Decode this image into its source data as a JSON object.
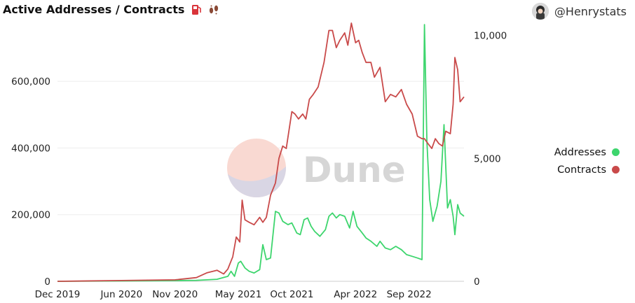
{
  "header": {
    "title": "Active Addresses / Contracts",
    "author": "@Henrystats"
  },
  "watermark": "Dune",
  "colors": {
    "addresses": "#3dd56d",
    "contracts": "#c94a4a",
    "grid": "#eeeeee"
  },
  "chart_data": {
    "type": "line",
    "title": "Active Addresses / Contracts",
    "xlabel": "",
    "ylabel": "",
    "x_ticks": [
      "Dec 2019",
      "Jun 2020",
      "Nov 2020",
      "May 2021",
      "Oct 2021",
      "Apr 2022",
      "Sep 2022"
    ],
    "y_left": {
      "ticks": [
        "0",
        "200,000",
        "400,000",
        "600,000"
      ],
      "ylim": [
        0,
        760000
      ]
    },
    "y_right": {
      "ticks": [
        "0",
        "5,000",
        "10,000"
      ],
      "ylim": [
        0,
        10300
      ]
    },
    "grid": true,
    "legend_position": "right",
    "series": [
      {
        "name": "Addresses",
        "axis": "left",
        "points": [
          [
            "2019-12-01",
            0
          ],
          [
            "2020-06-01",
            1000
          ],
          [
            "2020-11-01",
            2000
          ],
          [
            "2021-01-01",
            3000
          ],
          [
            "2021-03-01",
            6000
          ],
          [
            "2021-04-01",
            15000
          ],
          [
            "2021-04-10",
            30000
          ],
          [
            "2021-04-20",
            15000
          ],
          [
            "2021-05-01",
            55000
          ],
          [
            "2021-05-08",
            60000
          ],
          [
            "2021-05-20",
            40000
          ],
          [
            "2021-06-01",
            30000
          ],
          [
            "2021-06-15",
            25000
          ],
          [
            "2021-07-01",
            35000
          ],
          [
            "2021-07-10",
            110000
          ],
          [
            "2021-07-20",
            65000
          ],
          [
            "2021-08-01",
            70000
          ],
          [
            "2021-08-15",
            210000
          ],
          [
            "2021-08-25",
            205000
          ],
          [
            "2021-09-05",
            180000
          ],
          [
            "2021-09-20",
            170000
          ],
          [
            "2021-10-01",
            175000
          ],
          [
            "2021-10-15",
            145000
          ],
          [
            "2021-10-25",
            140000
          ],
          [
            "2021-11-05",
            185000
          ],
          [
            "2021-11-15",
            190000
          ],
          [
            "2021-11-25",
            165000
          ],
          [
            "2021-12-05",
            150000
          ],
          [
            "2021-12-20",
            135000
          ],
          [
            "2022-01-05",
            155000
          ],
          [
            "2022-01-15",
            195000
          ],
          [
            "2022-01-25",
            205000
          ],
          [
            "2022-02-05",
            190000
          ],
          [
            "2022-02-15",
            200000
          ],
          [
            "2022-03-01",
            195000
          ],
          [
            "2022-03-15",
            160000
          ],
          [
            "2022-03-25",
            210000
          ],
          [
            "2022-04-05",
            165000
          ],
          [
            "2022-04-20",
            145000
          ],
          [
            "2022-05-01",
            130000
          ],
          [
            "2022-05-15",
            120000
          ],
          [
            "2022-06-01",
            105000
          ],
          [
            "2022-06-10",
            120000
          ],
          [
            "2022-06-25",
            100000
          ],
          [
            "2022-07-10",
            95000
          ],
          [
            "2022-07-25",
            105000
          ],
          [
            "2022-08-10",
            95000
          ],
          [
            "2022-08-25",
            80000
          ],
          [
            "2022-09-10",
            75000
          ],
          [
            "2022-09-25",
            70000
          ],
          [
            "2022-10-08",
            65000
          ],
          [
            "2022-10-15",
            770000
          ],
          [
            "2022-10-22",
            420000
          ],
          [
            "2022-10-30",
            245000
          ],
          [
            "2022-11-08",
            180000
          ],
          [
            "2022-11-20",
            225000
          ],
          [
            "2022-12-01",
            300000
          ],
          [
            "2022-12-10",
            470000
          ],
          [
            "2022-12-20",
            220000
          ],
          [
            "2022-12-28",
            245000
          ],
          [
            "2023-01-05",
            195000
          ],
          [
            "2023-01-10",
            140000
          ],
          [
            "2023-01-18",
            230000
          ],
          [
            "2023-01-25",
            205000
          ],
          [
            "2023-02-05",
            195000
          ]
        ]
      },
      {
        "name": "Contracts",
        "axis": "right",
        "points": [
          [
            "2019-12-01",
            0
          ],
          [
            "2020-06-01",
            30
          ],
          [
            "2020-11-01",
            60
          ],
          [
            "2021-01-01",
            150
          ],
          [
            "2021-02-01",
            350
          ],
          [
            "2021-03-01",
            450
          ],
          [
            "2021-03-20",
            300
          ],
          [
            "2021-04-01",
            500
          ],
          [
            "2021-04-15",
            1000
          ],
          [
            "2021-04-25",
            1800
          ],
          [
            "2021-05-05",
            1600
          ],
          [
            "2021-05-12",
            3300
          ],
          [
            "2021-05-20",
            2500
          ],
          [
            "2021-06-01",
            2400
          ],
          [
            "2021-06-15",
            2300
          ],
          [
            "2021-07-01",
            2600
          ],
          [
            "2021-07-10",
            2400
          ],
          [
            "2021-07-20",
            2600
          ],
          [
            "2021-08-01",
            3500
          ],
          [
            "2021-08-15",
            4000
          ],
          [
            "2021-08-25",
            5000
          ],
          [
            "2021-09-05",
            5500
          ],
          [
            "2021-09-15",
            5400
          ],
          [
            "2021-10-01",
            6900
          ],
          [
            "2021-10-10",
            6800
          ],
          [
            "2021-10-20",
            6600
          ],
          [
            "2021-11-01",
            6800
          ],
          [
            "2021-11-10",
            6600
          ],
          [
            "2021-11-20",
            7400
          ],
          [
            "2021-12-01",
            7600
          ],
          [
            "2021-12-15",
            7900
          ],
          [
            "2022-01-01",
            8900
          ],
          [
            "2022-01-15",
            10200
          ],
          [
            "2022-01-25",
            10200
          ],
          [
            "2022-02-05",
            9500
          ],
          [
            "2022-02-15",
            9800
          ],
          [
            "2022-03-01",
            10100
          ],
          [
            "2022-03-10",
            9600
          ],
          [
            "2022-03-20",
            10500
          ],
          [
            "2022-04-01",
            9700
          ],
          [
            "2022-04-10",
            9800
          ],
          [
            "2022-04-20",
            9300
          ],
          [
            "2022-05-01",
            8900
          ],
          [
            "2022-05-15",
            8900
          ],
          [
            "2022-05-25",
            8300
          ],
          [
            "2022-06-10",
            8700
          ],
          [
            "2022-06-25",
            7300
          ],
          [
            "2022-07-10",
            7600
          ],
          [
            "2022-07-25",
            7500
          ],
          [
            "2022-08-10",
            7800
          ],
          [
            "2022-08-25",
            7200
          ],
          [
            "2022-09-10",
            6800
          ],
          [
            "2022-09-25",
            5900
          ],
          [
            "2022-10-08",
            5800
          ],
          [
            "2022-10-15",
            5800
          ],
          [
            "2022-10-25",
            5600
          ],
          [
            "2022-11-05",
            5400
          ],
          [
            "2022-11-15",
            5800
          ],
          [
            "2022-11-25",
            5600
          ],
          [
            "2022-12-05",
            5500
          ],
          [
            "2022-12-15",
            6100
          ],
          [
            "2022-12-28",
            6000
          ],
          [
            "2023-01-05",
            7200
          ],
          [
            "2023-01-10",
            9100
          ],
          [
            "2023-01-18",
            8600
          ],
          [
            "2023-01-25",
            7300
          ],
          [
            "2023-02-05",
            7500
          ]
        ]
      }
    ]
  }
}
